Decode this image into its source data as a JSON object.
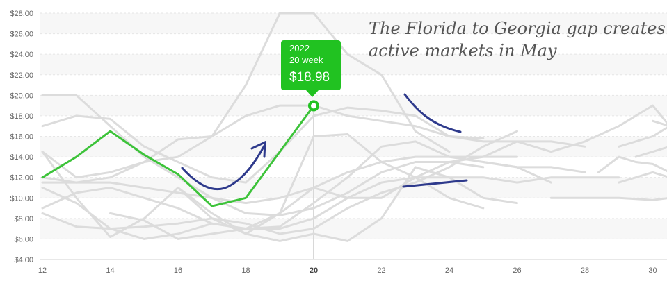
{
  "chart_data": {
    "type": "line",
    "x_ticks": [
      12,
      14,
      16,
      18,
      20,
      22,
      24,
      26,
      28,
      30
    ],
    "x_range": [
      12,
      30.5
    ],
    "highlight_x_tick": 20,
    "y_ticks": [
      "$4.00",
      "$6.00",
      "$8.00",
      "$10.00",
      "$12.00",
      "$14.00",
      "$16.00",
      "$18.00",
      "$20.00",
      "$22.00",
      "$24.00",
      "$26.00",
      "$28.00"
    ],
    "y_range": [
      4,
      28
    ],
    "grid": "horizontal dashed, alternating bands",
    "highlight_series": {
      "color": "#3dc33a",
      "points": [
        [
          12,
          12.0
        ],
        [
          13,
          14.0
        ],
        [
          14,
          16.5
        ],
        [
          15,
          14.2
        ],
        [
          16,
          12.3
        ],
        [
          17,
          9.2
        ],
        [
          18,
          10.0
        ],
        [
          19,
          14.5
        ],
        [
          20,
          18.98
        ]
      ]
    },
    "background_series_color": "#dcdcdc",
    "background_series": [
      [
        [
          12,
          20.0
        ],
        [
          13,
          20.0
        ],
        [
          14,
          17.0
        ],
        [
          15,
          14.0
        ],
        [
          16,
          12.0
        ],
        [
          17,
          10.0
        ],
        [
          18,
          8.5
        ],
        [
          19,
          8.3
        ],
        [
          20,
          9.0
        ],
        [
          21,
          10.5
        ],
        [
          22,
          12.5
        ],
        [
          23,
          13.5
        ],
        [
          24,
          13.5
        ],
        [
          25,
          13.0
        ]
      ],
      [
        [
          12,
          17.0
        ],
        [
          13,
          18.0
        ],
        [
          14,
          17.7
        ],
        [
          15,
          15.0
        ],
        [
          16,
          13.5
        ],
        [
          17,
          12.0
        ],
        [
          18,
          11.5
        ],
        [
          19,
          14.5
        ],
        [
          20,
          18.0
        ],
        [
          21,
          18.8
        ],
        [
          22,
          18.5
        ],
        [
          23,
          18.0
        ],
        [
          24,
          16.0
        ],
        [
          25,
          15.5
        ],
        [
          26,
          15.5
        ],
        [
          27,
          15.5
        ],
        [
          28,
          15.0
        ]
      ],
      [
        [
          12,
          14.5
        ],
        [
          13,
          12.0
        ],
        [
          14,
          12.5
        ],
        [
          15,
          13.5
        ],
        [
          16,
          15.7
        ],
        [
          17,
          16.0
        ],
        [
          18,
          21.0
        ],
        [
          19,
          28.0
        ],
        [
          20,
          28.0
        ],
        [
          21,
          24.0
        ],
        [
          22,
          22.0
        ],
        [
          23,
          16.5
        ],
        [
          24,
          14.5
        ]
      ],
      [
        [
          12,
          12.0
        ],
        [
          13,
          11.5
        ],
        [
          14,
          12.0
        ],
        [
          15,
          13.5
        ],
        [
          16,
          14.0
        ],
        [
          17,
          16.0
        ],
        [
          18,
          18.0
        ],
        [
          19,
          19.0
        ],
        [
          20,
          19.0
        ],
        [
          21,
          18.0
        ],
        [
          22,
          17.5
        ],
        [
          23,
          17.0
        ],
        [
          24,
          16.0
        ],
        [
          25,
          15.8
        ]
      ],
      [
        [
          12,
          11.5
        ],
        [
          13,
          11.5
        ],
        [
          14,
          11.5
        ],
        [
          15,
          11.0
        ],
        [
          16,
          10.5
        ],
        [
          17,
          10.0
        ],
        [
          18,
          9.5
        ],
        [
          19,
          10.0
        ],
        [
          20,
          11.0
        ],
        [
          21,
          12.5
        ],
        [
          22,
          13.5
        ],
        [
          23,
          14.0
        ],
        [
          24,
          14.0
        ],
        [
          25,
          14.0
        ],
        [
          26,
          14.0
        ]
      ],
      [
        [
          12,
          9.0
        ],
        [
          13,
          10.5
        ],
        [
          14,
          11.0
        ],
        [
          15,
          10.0
        ],
        [
          16,
          9.0
        ],
        [
          17,
          7.5
        ],
        [
          18,
          7.0
        ],
        [
          19,
          7.0
        ],
        [
          20,
          8.0
        ],
        [
          21,
          10.0
        ],
        [
          22,
          11.5
        ],
        [
          23,
          12.0
        ],
        [
          24,
          12.0
        ],
        [
          25,
          12.0
        ],
        [
          26,
          11.5
        ],
        [
          27,
          12.0
        ],
        [
          28,
          12.0
        ],
        [
          29,
          12.0
        ]
      ],
      [
        [
          12,
          8.5
        ],
        [
          13,
          7.2
        ],
        [
          14,
          7.0
        ],
        [
          15,
          7.2
        ],
        [
          16,
          7.5
        ],
        [
          17,
          8.0
        ],
        [
          18,
          7.5
        ],
        [
          19,
          6.5
        ],
        [
          20,
          7.0
        ],
        [
          21,
          9.0
        ],
        [
          22,
          10.5
        ],
        [
          23,
          11.5
        ],
        [
          24,
          13.0
        ],
        [
          25,
          15.0
        ],
        [
          26,
          16.5
        ]
      ],
      [
        [
          12,
          14.5
        ],
        [
          13,
          10.0
        ],
        [
          14,
          6.2
        ],
        [
          15,
          8.0
        ],
        [
          16,
          11.0
        ],
        [
          17,
          8.0
        ],
        [
          18,
          6.5
        ],
        [
          19,
          5.8
        ],
        [
          20,
          6.5
        ],
        [
          21,
          5.8
        ],
        [
          22,
          8.0
        ],
        [
          23,
          13.0
        ],
        [
          24,
          12.0
        ],
        [
          25,
          10.0
        ],
        [
          26,
          9.5
        ]
      ],
      [
        [
          16,
          11.0
        ],
        [
          17,
          8.5
        ],
        [
          18,
          6.5
        ],
        [
          19,
          8.5
        ],
        [
          20,
          16.0
        ],
        [
          21,
          16.2
        ],
        [
          22,
          13.5
        ],
        [
          23,
          12.0
        ],
        [
          24,
          10.0
        ],
        [
          25,
          9.0
        ]
      ],
      [
        [
          14,
          8.5
        ],
        [
          15,
          7.8
        ],
        [
          16,
          6.0
        ],
        [
          17,
          6.5
        ],
        [
          18,
          7.0
        ],
        [
          19,
          7.2
        ],
        [
          20,
          9.5
        ],
        [
          21,
          12.0
        ],
        [
          22,
          15.0
        ],
        [
          23,
          15.5
        ],
        [
          24,
          14.0
        ],
        [
          25,
          13.5
        ],
        [
          26,
          13.0
        ],
        [
          27,
          13.0
        ],
        [
          28,
          12.5
        ]
      ],
      [
        [
          12,
          11.0
        ],
        [
          13,
          9.5
        ],
        [
          14,
          7.0
        ],
        [
          15,
          6.0
        ],
        [
          16,
          6.5
        ],
        [
          17,
          7.5
        ],
        [
          18,
          7.0
        ],
        [
          19,
          8.5
        ],
        [
          20,
          11.0
        ],
        [
          21,
          10.0
        ],
        [
          22,
          10.0
        ],
        [
          23,
          12.0
        ],
        [
          24,
          13.5
        ],
        [
          25,
          14.0
        ],
        [
          26,
          15.5
        ],
        [
          27,
          14.5
        ],
        [
          28,
          15.5
        ],
        [
          29,
          17.0
        ],
        [
          30,
          19.0
        ],
        [
          30.5,
          17.0
        ]
      ],
      [
        [
          25,
          13.5
        ],
        [
          26,
          13.0
        ],
        [
          27,
          11.5
        ]
      ],
      [
        [
          27,
          10.0
        ],
        [
          28,
          10.0
        ],
        [
          29,
          10.0
        ],
        [
          30,
          9.8
        ],
        [
          30.5,
          10.0
        ]
      ],
      [
        [
          28.4,
          12.5
        ],
        [
          29,
          14.0
        ],
        [
          29.5,
          13.5
        ],
        [
          30,
          13.3
        ],
        [
          30.5,
          12.5
        ]
      ],
      [
        [
          29,
          15.0
        ],
        [
          30,
          16.0
        ],
        [
          30.5,
          17.0
        ]
      ],
      [
        [
          29,
          11.5
        ],
        [
          30,
          12.5
        ],
        [
          30.5,
          12.0
        ]
      ],
      [
        [
          30,
          17.5
        ],
        [
          30.5,
          17.0
        ]
      ],
      [
        [
          29.5,
          14.0
        ],
        [
          30.5,
          15.0
        ]
      ]
    ],
    "tooltip": {
      "year": "2022",
      "week": "20 week",
      "value": "$18.98",
      "x": 20,
      "y": 18.98,
      "color": "#21c221"
    },
    "annotation": {
      "line1": "The Florida to Georgia gap creates",
      "line2": "active markets in May",
      "color": "#2e3a8c"
    }
  }
}
